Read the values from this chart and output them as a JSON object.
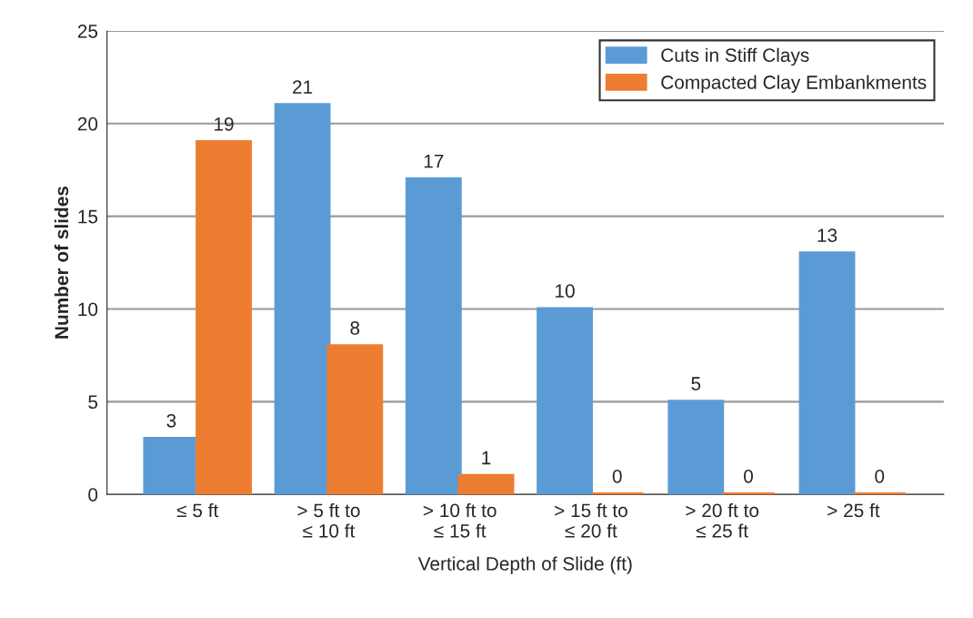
{
  "chart_data": {
    "type": "bar",
    "xlabel": "Vertical Depth of Slide (ft)",
    "ylabel": "Number of slides",
    "categories": [
      "≤ 5 ft",
      "> 5 ft to\n≤ 10 ft",
      "> 10 ft to\n≤ 15 ft",
      "> 15 ft to\n≤ 20 ft",
      "> 20 ft to\n≤ 25 ft",
      "> 25 ft"
    ],
    "series": [
      {
        "name": "Cuts in Stiff Clays",
        "color": "#5b9bd5",
        "values": [
          3,
          21,
          17,
          10,
          5,
          13
        ]
      },
      {
        "name": "Compacted Clay Embankments",
        "color": "#ed7d31",
        "values": [
          19,
          8,
          1,
          0,
          0,
          0
        ]
      }
    ],
    "ylim": [
      0,
      25
    ],
    "yticks": [
      0,
      5,
      10,
      15,
      20,
      25
    ],
    "grid": "y",
    "legend": "top right",
    "data_labels": true
  }
}
